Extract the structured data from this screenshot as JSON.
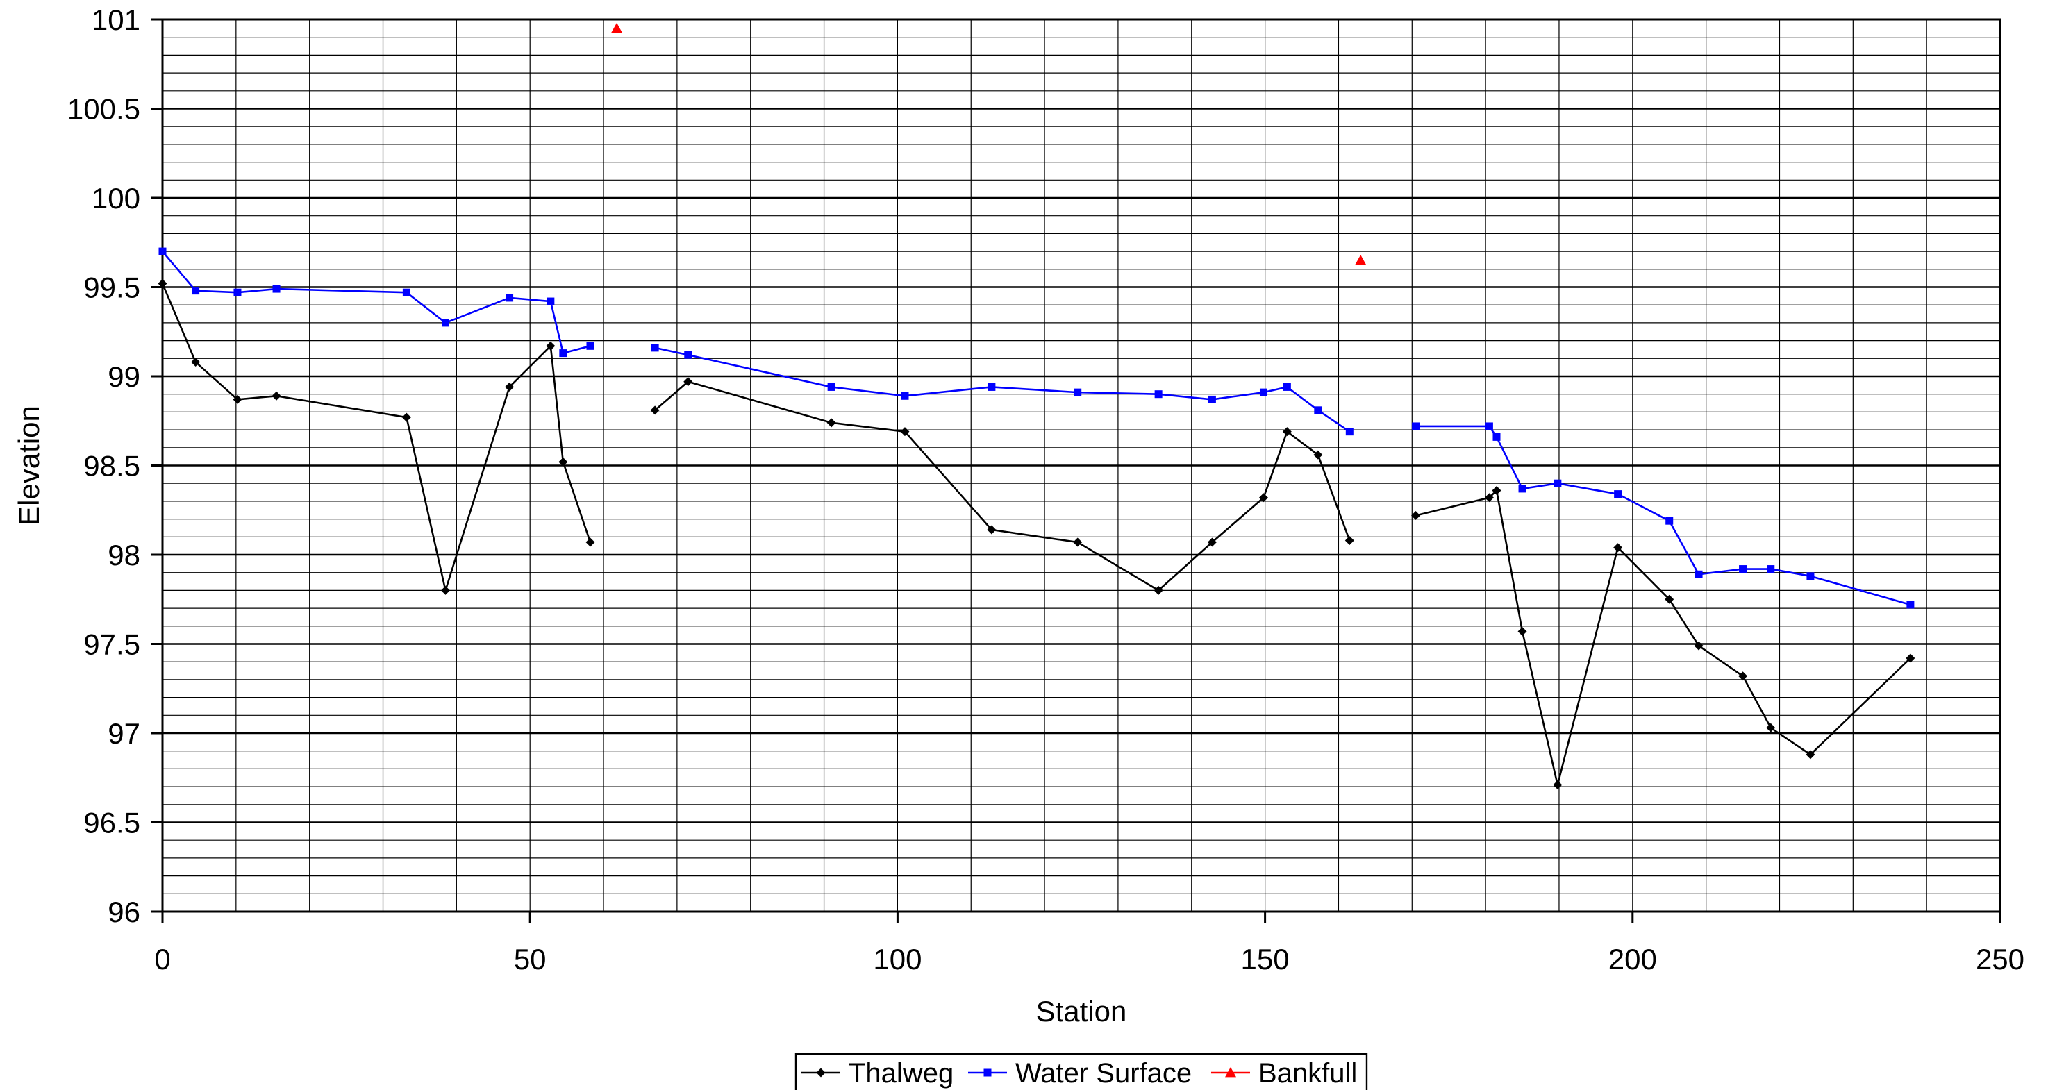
{
  "chart_data": {
    "type": "line",
    "title": "",
    "xlabel": "Station",
    "ylabel": "Elevation",
    "xlim": [
      0,
      250
    ],
    "ylim": [
      96,
      101
    ],
    "x_ticks": [
      0,
      50,
      100,
      150,
      200,
      250
    ],
    "y_ticks": [
      96,
      96.5,
      97,
      97.5,
      98,
      98.5,
      99,
      99.5,
      100,
      100.5,
      101
    ],
    "x_tick_labels": [
      "0",
      "50",
      "100",
      "150",
      "200",
      "250"
    ],
    "y_tick_labels": [
      "96",
      "96.5",
      "97",
      "97.5",
      "98",
      "98.5",
      "99",
      "99.5",
      "100",
      "100.5",
      "101"
    ],
    "x_minor_step": 10,
    "y_minor_step": 0.1,
    "grid": true,
    "legend_position": "bottom-center",
    "series": [
      {
        "name": "Thalweg",
        "color": "#000000",
        "marker": "diamond",
        "segments": [
          [
            [
              0,
              99.52
            ],
            [
              4.5,
              99.08
            ],
            [
              10.2,
              98.87
            ],
            [
              15.5,
              98.89
            ],
            [
              33.2,
              98.77
            ],
            [
              38.5,
              97.8
            ],
            [
              47.2,
              98.94
            ],
            [
              52.8,
              99.17
            ],
            [
              54.5,
              98.52
            ],
            [
              58.2,
              98.07
            ]
          ],
          [
            [
              67,
              98.81
            ],
            [
              71.5,
              98.97
            ],
            [
              91,
              98.74
            ],
            [
              101,
              98.69
            ],
            [
              112.8,
              98.14
            ],
            [
              124.5,
              98.07
            ],
            [
              135.5,
              97.8
            ],
            [
              142.8,
              98.07
            ],
            [
              149.8,
              98.32
            ],
            [
              153,
              98.69
            ],
            [
              157.2,
              98.56
            ],
            [
              161.5,
              98.08
            ]
          ],
          [
            [
              170.5,
              98.22
            ],
            [
              180.5,
              98.32
            ],
            [
              181.5,
              98.36
            ],
            [
              185,
              97.57
            ],
            [
              189.8,
              96.71
            ],
            [
              198,
              98.04
            ],
            [
              205,
              97.75
            ],
            [
              209,
              97.49
            ],
            [
              215,
              97.32
            ],
            [
              218.8,
              97.03
            ],
            [
              224.2,
              96.88
            ],
            [
              237.8,
              97.42
            ]
          ]
        ]
      },
      {
        "name": "Water Surface",
        "color": "#0000ff",
        "marker": "square",
        "segments": [
          [
            [
              0,
              99.7
            ],
            [
              4.5,
              99.48
            ],
            [
              10.2,
              99.47
            ],
            [
              15.5,
              99.49
            ],
            [
              33.2,
              99.47
            ],
            [
              38.5,
              99.3
            ],
            [
              47.2,
              99.44
            ],
            [
              52.8,
              99.42
            ],
            [
              54.5,
              99.13
            ],
            [
              58.2,
              99.17
            ]
          ],
          [
            [
              67,
              99.16
            ],
            [
              71.5,
              99.12
            ],
            [
              91,
              98.94
            ],
            [
              101,
              98.89
            ],
            [
              112.8,
              98.94
            ],
            [
              124.5,
              98.91
            ],
            [
              135.5,
              98.9
            ],
            [
              142.8,
              98.87
            ],
            [
              149.8,
              98.91
            ],
            [
              153,
              98.94
            ],
            [
              157.2,
              98.81
            ],
            [
              161.5,
              98.69
            ]
          ],
          [
            [
              170.5,
              98.72
            ],
            [
              180.5,
              98.72
            ],
            [
              181.5,
              98.66
            ],
            [
              185,
              98.37
            ],
            [
              189.8,
              98.4
            ],
            [
              198,
              98.34
            ],
            [
              205,
              98.19
            ],
            [
              209,
              97.89
            ],
            [
              215,
              97.92
            ],
            [
              218.8,
              97.92
            ],
            [
              224.2,
              97.88
            ],
            [
              237.8,
              97.72
            ]
          ]
        ]
      },
      {
        "name": "Bankfull",
        "color": "#ff0000",
        "marker": "triangle",
        "segments": [
          [
            [
              61.8,
              100.95
            ]
          ],
          [
            [
              163,
              99.65
            ]
          ]
        ]
      }
    ]
  }
}
